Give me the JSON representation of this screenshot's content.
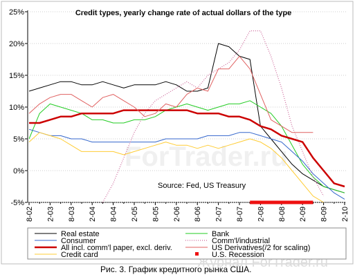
{
  "chart_data": {
    "type": "line",
    "title": "Credit types, yearly change rate of actual dollars of the type",
    "annotation": "Source: Fed, US Treasury",
    "caption": "Рис. 3. График кредитного рынка США.",
    "watermarks": [
      "ForTrader.ru",
      "Журнал ForTrader.ru"
    ],
    "categories": [
      "8-02",
      null,
      "2-03",
      null,
      "8-03",
      null,
      "2-04",
      null,
      "8-04",
      null,
      "2-05",
      null,
      "8-05",
      null,
      "2-06",
      null,
      "8-06",
      null,
      "2-07",
      null,
      "8-07",
      null,
      "2-08",
      null,
      "8-08",
      null,
      "2-09",
      null,
      "8-09",
      null,
      "2-10"
    ],
    "ylim": [
      -5,
      25
    ],
    "yticks": [
      {
        "value": -5,
        "label": "-5%"
      },
      {
        "value": 0,
        "label": "0%"
      },
      {
        "value": 5,
        "label": "5%"
      },
      {
        "value": 10,
        "label": "10%"
      },
      {
        "value": 15,
        "label": "15%"
      },
      {
        "value": 20,
        "label": "20%"
      },
      {
        "value": 25,
        "label": "25%"
      }
    ],
    "grid": true,
    "series": [
      {
        "name": "Real estate",
        "color": "#000000",
        "values": [
          12.5,
          13,
          13.5,
          14,
          14,
          13.5,
          13.5,
          14,
          13.5,
          13,
          13.5,
          13.5,
          13.5,
          14,
          13.5,
          12.5,
          12.5,
          13,
          20,
          19.5,
          18,
          17.5,
          7,
          5,
          3,
          1,
          -0.5,
          -1.5,
          -2.5,
          -3,
          -3.5
        ]
      },
      {
        "name": "Bank",
        "color": "#22cc22",
        "values": [
          5,
          9,
          10.5,
          10,
          9.5,
          9,
          8,
          8,
          7.5,
          7.5,
          8,
          8,
          8.5,
          9.5,
          10,
          10.5,
          10,
          9.5,
          10,
          10.5,
          10.5,
          11,
          10,
          9,
          7,
          4,
          1,
          -1,
          -2.5,
          -3,
          -3.5
        ]
      },
      {
        "name": "Consumer",
        "color": "#3366cc",
        "values": [
          6.5,
          6,
          5.5,
          5.5,
          5,
          5,
          4.5,
          4.5,
          4.5,
          4.5,
          4.5,
          4.5,
          4.5,
          5,
          5,
          5,
          5,
          5.5,
          5.5,
          5.5,
          6,
          6,
          5.5,
          5,
          4.5,
          3,
          1.5,
          -0.5,
          -2,
          -3.5,
          -4.5
        ]
      },
      {
        "name": "Comm'l/industrial",
        "color": "#cc6699",
        "values": [
          null,
          null,
          null,
          null,
          null,
          null,
          null,
          -5,
          -2,
          2,
          6,
          9,
          11,
          12,
          13,
          14,
          13,
          15,
          16,
          17,
          19,
          22,
          22,
          18,
          13,
          7,
          3,
          -1,
          -4,
          null,
          null
        ]
      },
      {
        "name": "All incl. comm'l paper, excl. deriv.",
        "color": "#cc0000",
        "values": [
          7.5,
          7.5,
          8,
          8.5,
          8.5,
          9,
          9,
          9,
          9,
          9.5,
          9.5,
          9.5,
          9.5,
          9.5,
          9.5,
          9.5,
          9,
          9,
          9,
          8.5,
          8.5,
          8,
          7,
          6.5,
          5.5,
          5,
          4.5,
          2,
          0,
          -2,
          -2.5
        ]
      },
      {
        "name": "US Derivatives(/2 for scaling)",
        "color": "#e06060",
        "values": [
          9,
          10.5,
          11.5,
          12,
          12,
          11,
          10,
          11.5,
          12,
          11,
          10,
          8.5,
          9,
          10.5,
          10,
          12,
          13,
          12.5,
          16,
          16,
          18,
          16,
          12,
          8,
          7,
          6,
          6,
          6,
          null,
          null,
          null
        ]
      },
      {
        "name": "Credit card",
        "color": "#ffcc33",
        "values": [
          4.5,
          6,
          5.5,
          5,
          4,
          3,
          3,
          3,
          3,
          2.5,
          3,
          3.5,
          4,
          4.5,
          4,
          4,
          3.5,
          4,
          3.5,
          4,
          4.5,
          5,
          4.5,
          3.5,
          2,
          0,
          -2,
          -4,
          -5,
          null,
          null
        ]
      },
      {
        "name": "U.S. Recession",
        "color": "#ee1111",
        "values": [
          null,
          null,
          null,
          null,
          null,
          null,
          null,
          null,
          null,
          null,
          null,
          null,
          null,
          null,
          null,
          null,
          null,
          null,
          null,
          null,
          null,
          -5,
          -5,
          -5,
          -5,
          -5,
          -5,
          -5,
          null,
          null,
          null
        ]
      }
    ]
  }
}
